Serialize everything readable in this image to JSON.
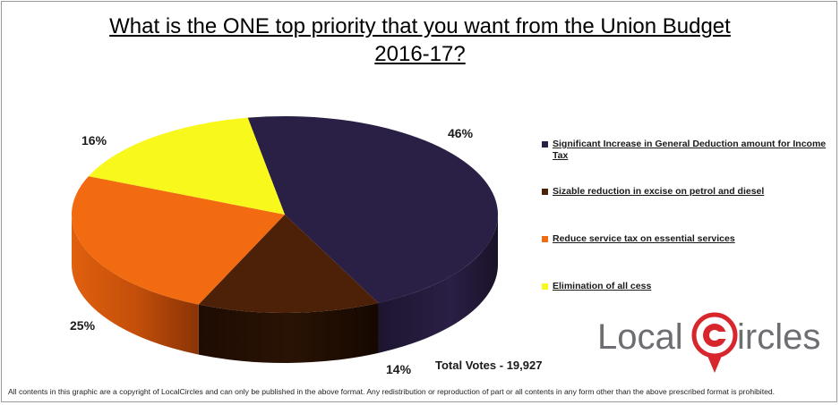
{
  "title_line1": "What is the ONE top priority that you want from the Union Budget",
  "title_line2": "2016-17?",
  "chart_data": {
    "type": "pie",
    "title": "What is the ONE top priority that you want from the Union Budget 2016-17?",
    "categories": [
      "Significant  Increase in General Deduction amount for Income Tax",
      "Sizable  reduction in excise on petrol and diesel",
      "Reduce service tax on essential services",
      "Elimination of all cess"
    ],
    "values": [
      46,
      14,
      25,
      16
    ],
    "labels": [
      "46%",
      "14%",
      "25%",
      "16%"
    ],
    "colors": [
      "#2a1f44",
      "#4d2108",
      "#f26b11",
      "#f8f81c"
    ],
    "legend_position": "right",
    "style": "3d"
  },
  "total_votes": "Total Votes - 19,927",
  "logo": {
    "text_left": "Local",
    "text_right": "ircles",
    "icon": "map-pin-c-icon"
  },
  "copyright": "All contents in this graphic are a copyright of LocalCircles and can only be published in the above format. Any redistribution or reproduction of part or all contents in any form other than the above prescribed format is prohibited."
}
